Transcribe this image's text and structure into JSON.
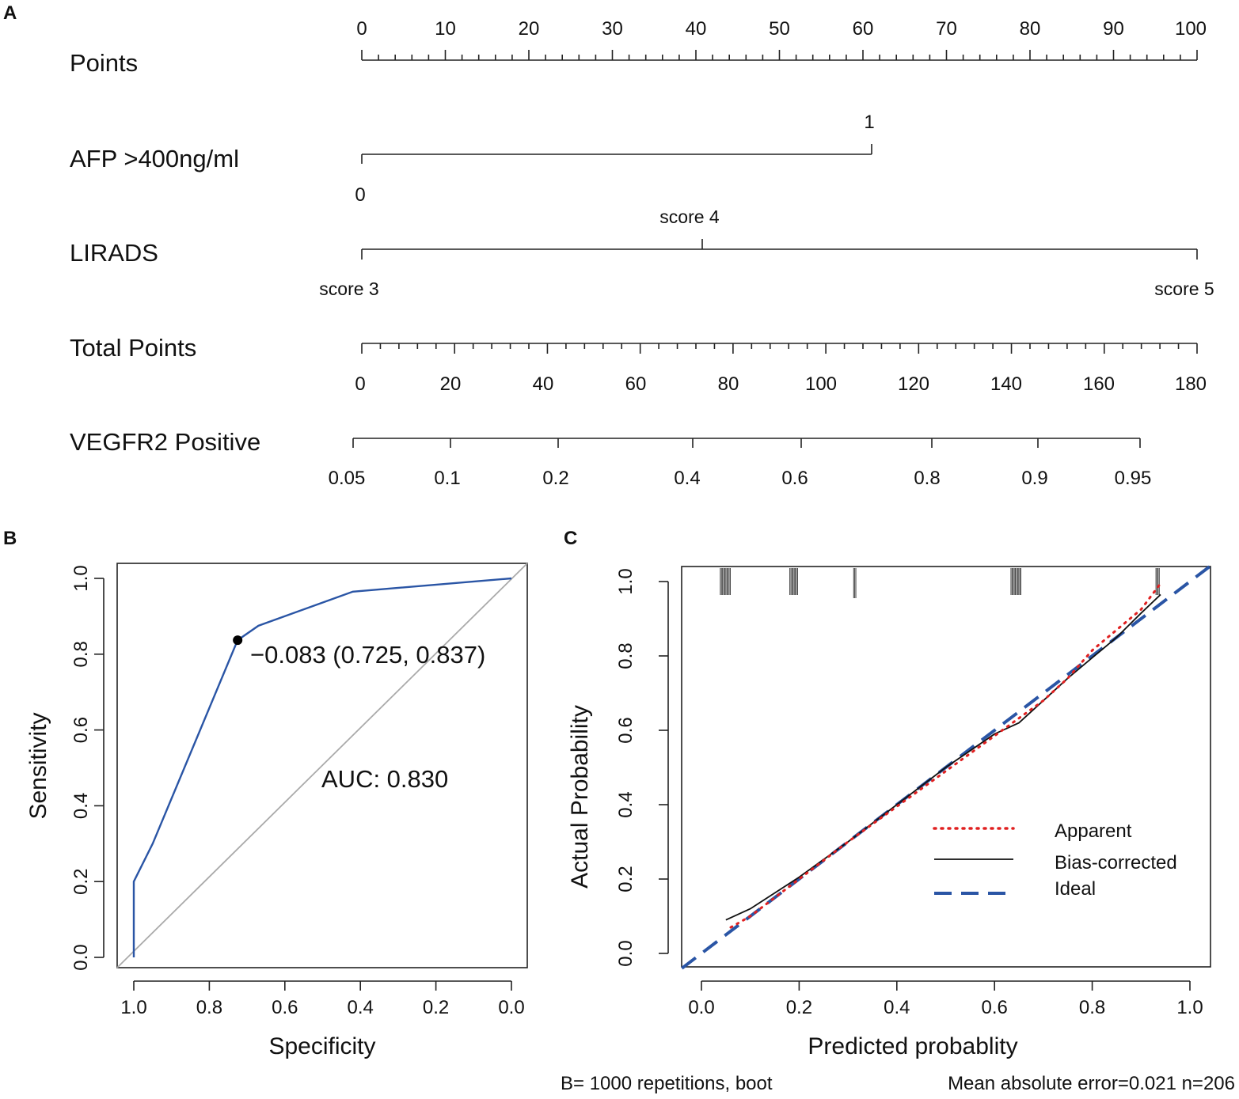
{
  "panels": {
    "a": "A",
    "b": "B",
    "c": "C"
  },
  "chart_data": [
    {
      "type": "nomogram",
      "panel": "A",
      "rows": [
        {
          "label": "Points",
          "ticks": [
            0,
            10,
            20,
            30,
            40,
            50,
            60,
            70,
            80,
            90,
            100
          ]
        },
        {
          "label": "AFP  >400ng/ml",
          "levels": [
            {
              "label": "0",
              "points": 0
            },
            {
              "label": "1",
              "points": 61
            }
          ]
        },
        {
          "label": "LIRADS",
          "levels": [
            {
              "label": "score 3",
              "points": 0
            },
            {
              "label": "score 4",
              "points": 40.8
            },
            {
              "label": "score 5",
              "points": 100
            }
          ]
        },
        {
          "label": "Total Points",
          "ticks": [
            0,
            20,
            40,
            60,
            80,
            100,
            120,
            140,
            160,
            180
          ]
        },
        {
          "label": "VEGFR2 Positive",
          "probabilities": [
            "0.05",
            "0.1",
            "0.2",
            "0.4",
            "0.6",
            "0.8",
            "0.9",
            "0.95"
          ]
        }
      ]
    },
    {
      "type": "line",
      "panel": "B",
      "xlabel": "Specificity",
      "ylabel": "Sensitivity",
      "xlim": [
        1.0,
        0.0
      ],
      "ylim": [
        0.0,
        1.0
      ],
      "xticks": [
        "1.0",
        "0.8",
        "0.6",
        "0.4",
        "0.2",
        "0.0"
      ],
      "yticks": [
        "0.0",
        "0.2",
        "0.4",
        "0.6",
        "0.8",
        "1.0"
      ],
      "roc": {
        "specificity": [
          1.0,
          1.0,
          0.95,
          0.725,
          0.67,
          0.42,
          0.0
        ],
        "sensitivity": [
          0.0,
          0.2,
          0.3,
          0.837,
          0.875,
          0.965,
          1.0
        ]
      },
      "diagonal": true,
      "threshold_point": {
        "specificity": 0.725,
        "sensitivity": 0.837,
        "label": "−0.083 (0.725, 0.837)"
      },
      "auc_label": "AUC: 0.830",
      "colors": {
        "roc": "#2a55a5",
        "diagonal": "#aaaaaa"
      }
    },
    {
      "type": "line",
      "panel": "C",
      "xlabel": "Predicted probablity",
      "ylabel": "Actual Probability",
      "xlim": [
        -0.04,
        1.04
      ],
      "ylim": [
        -0.04,
        1.04
      ],
      "xticks": [
        "0.0",
        "0.2",
        "0.4",
        "0.6",
        "0.8",
        "1.0"
      ],
      "yticks": [
        "0.0",
        "0.2",
        "0.4",
        "0.6",
        "0.8",
        "1.0"
      ],
      "series": [
        {
          "name": "Apparent",
          "x": [
            0.06,
            0.1,
            0.2,
            0.3,
            0.4,
            0.5,
            0.6,
            0.7,
            0.75,
            0.8,
            0.85,
            0.9,
            0.94
          ],
          "y": [
            0.07,
            0.1,
            0.2,
            0.3,
            0.395,
            0.49,
            0.585,
            0.68,
            0.74,
            0.815,
            0.87,
            0.925,
            0.995
          ],
          "color": "#e02020"
        },
        {
          "name": "Bias-corrected",
          "x": [
            0.05,
            0.1,
            0.2,
            0.3,
            0.4,
            0.5,
            0.6,
            0.65,
            0.7,
            0.75,
            0.8,
            0.85,
            0.9,
            0.94
          ],
          "y": [
            0.09,
            0.12,
            0.205,
            0.3,
            0.4,
            0.5,
            0.59,
            0.62,
            0.68,
            0.74,
            0.795,
            0.85,
            0.915,
            0.965
          ],
          "color": "#111111"
        },
        {
          "name": "Ideal",
          "x": [
            -0.04,
            1.04
          ],
          "y": [
            -0.04,
            1.04
          ],
          "color": "#2a55a5"
        }
      ],
      "rug_positions": [
        0.05,
        0.19,
        0.315,
        0.645,
        0.935
      ],
      "footer_left": "B= 1000 repetitions, boot",
      "footer_right": "Mean absolute error=0.021 n=206"
    }
  ]
}
